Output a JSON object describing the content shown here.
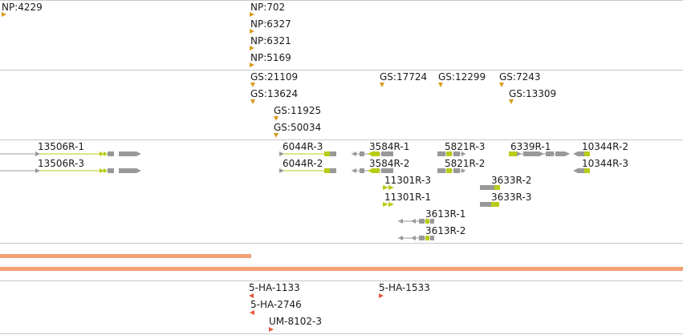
{
  "np_track": {
    "features": [
      {
        "label": "NP:4229"
      },
      {
        "label": "NP:702"
      },
      {
        "label": "NP:6327"
      },
      {
        "label": "NP:6321"
      },
      {
        "label": "NP:5169"
      }
    ],
    "marker_color": "#d79b1c"
  },
  "gs_track": {
    "features": [
      {
        "label": "GS:21109"
      },
      {
        "label": "GS:13624"
      },
      {
        "label": "GS:11925"
      },
      {
        "label": "GS:50034"
      },
      {
        "label": "GS:17724"
      },
      {
        "label": "GS:12299"
      },
      {
        "label": "GS:7243"
      },
      {
        "label": "GS:13309"
      }
    ],
    "marker_color": "#d79b1c"
  },
  "transcript_track": {
    "transcripts": [
      {
        "label": "13506R-1"
      },
      {
        "label": "13506R-3"
      },
      {
        "label": "6044R-3"
      },
      {
        "label": "6044R-2"
      },
      {
        "label": "3584R-1"
      },
      {
        "label": "3584R-2"
      },
      {
        "label": "11301R-3"
      },
      {
        "label": "11301R-1"
      },
      {
        "label": "5821R-3"
      },
      {
        "label": "5821R-2"
      },
      {
        "label": "3613R-1"
      },
      {
        "label": "3613R-2"
      },
      {
        "label": "6339R-1"
      },
      {
        "label": "3633R-2"
      },
      {
        "label": "3633R-3"
      },
      {
        "label": "10344R-2"
      },
      {
        "label": "10344R-3"
      }
    ],
    "colors": {
      "utr": "#999999",
      "cds": "#b8cc14",
      "intron": "#b8cc14"
    }
  },
  "coverage_track": {
    "color": "#f0a173"
  },
  "variant_track": {
    "features": [
      {
        "label": "5-HA-1133"
      },
      {
        "label": "5-HA-2746"
      },
      {
        "label": "UM-8102-3"
      },
      {
        "label": "5-HA-1533"
      }
    ],
    "marker_color": "#e4583c"
  }
}
